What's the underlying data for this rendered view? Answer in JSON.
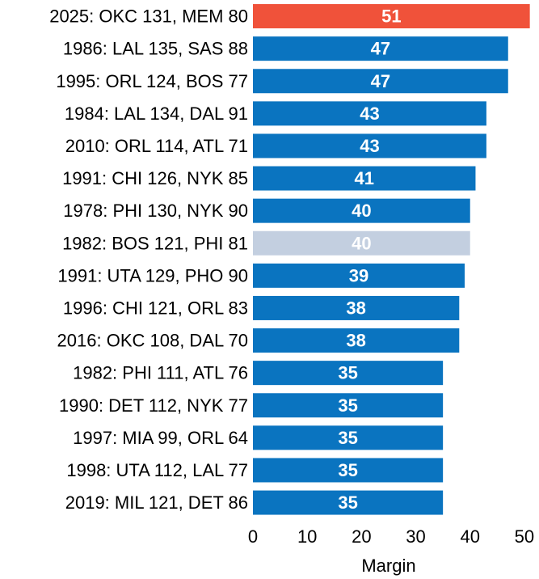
{
  "chart_data": {
    "type": "bar",
    "orientation": "horizontal",
    "title": "",
    "xlabel": "Margin",
    "ylabel": "",
    "xlim": [
      0,
      51.5
    ],
    "xticks": [
      0,
      10,
      20,
      30,
      40,
      50
    ],
    "grid": false,
    "categories": [
      "2025: OKC 131, MEM 80",
      "1986: LAL 135, SAS 88",
      "1995: ORL 124, BOS 77",
      "1984: LAL 134, DAL 91",
      "2010: ORL 114, ATL 71",
      "1991: CHI 126, NYK 85",
      "1978: PHI 130, NYK 90",
      "1982: BOS 121, PHI 81",
      "1991: UTA 129, PHO 90",
      "1996: CHI 121, ORL 83",
      "2016: OKC 108, DAL 70",
      "1982: PHI 111, ATL 76",
      "1990: DET 112, NYK 77",
      "1997: MIA 99, ORL 64",
      "1998: UTA 112, LAL 77",
      "2019: MIL 121, DET 86"
    ],
    "values": [
      51,
      47,
      47,
      43,
      43,
      41,
      40,
      40,
      39,
      38,
      38,
      35,
      35,
      35,
      35,
      35
    ],
    "bar_colors": [
      "#f0523a",
      "#0a74c0",
      "#0a74c0",
      "#0a74c0",
      "#0a74c0",
      "#0a74c0",
      "#0a74c0",
      "#c3cfe0",
      "#0a74c0",
      "#0a74c0",
      "#0a74c0",
      "#0a74c0",
      "#0a74c0",
      "#0a74c0",
      "#0a74c0",
      "#0a74c0"
    ]
  }
}
